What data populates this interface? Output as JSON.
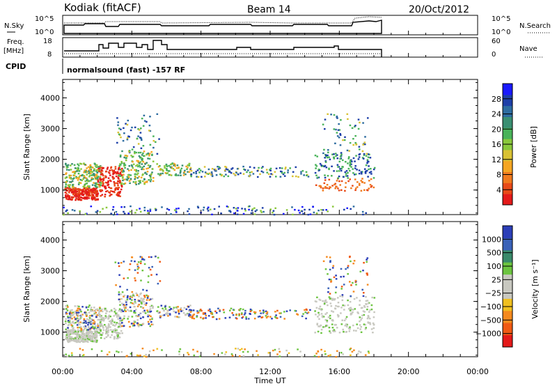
{
  "header": {
    "station": "Kodiak (fitACF)",
    "beam": "Beam 14",
    "date": "20/Oct/2012"
  },
  "top_panels": {
    "nsky_label": "N.Sky",
    "nsearch_label": "N.Search",
    "freq_label_1": "Freq.",
    "freq_label_2": "[MHz]",
    "nave_label": "Nave",
    "cpid_label": "CPID",
    "cpid_text": "normalsound (fast) -157 RF",
    "noise_ticks": [
      "10^5",
      "10^0"
    ],
    "freq_ticks": [
      "18",
      "8"
    ],
    "nave_ticks": [
      "60",
      "0"
    ]
  },
  "chart_data": [
    {
      "type": "heatmap",
      "id": "power",
      "ylabel": "Slant Range [km]",
      "xlabel": "",
      "ylim": [
        200,
        4600
      ],
      "yticks": [
        "1000",
        "2000",
        "3000",
        "4000"
      ],
      "colorbar": {
        "label": "Power [dB]",
        "ticks": [
          "28",
          "24",
          "20",
          "16",
          "12",
          "8",
          "4"
        ],
        "colors": [
          "#1a1aff",
          "#1d3fa8",
          "#2d6ca0",
          "#3a8f72",
          "#4ab35a",
          "#8ac83c",
          "#d9c234",
          "#f5a623",
          "#f07a1e",
          "#e84a18",
          "#e41a1a"
        ]
      }
    },
    {
      "type": "heatmap",
      "id": "velocity",
      "ylabel": "Slant Range [km]",
      "xlabel": "Time UT",
      "ylim": [
        200,
        4600
      ],
      "yticks": [
        "1000",
        "2000",
        "3000",
        "4000"
      ],
      "xticks": [
        "00:00",
        "04:00",
        "08:00",
        "12:00",
        "16:00",
        "20:00",
        "00:00"
      ],
      "colorbar": {
        "label": "Velocity [m s⁻¹]",
        "ticks": [
          "1000",
          "500",
          "100",
          "25",
          "−25",
          "−100",
          "−500",
          "−1000"
        ],
        "colors": [
          "#2c3fb8",
          "#3a62b8",
          "#3a8a6a",
          "#6cc440",
          "#c8c8c0",
          "#c8c8c0",
          "#f0c020",
          "#f58a1e",
          "#f05a14",
          "#e41a1a"
        ]
      }
    }
  ]
}
